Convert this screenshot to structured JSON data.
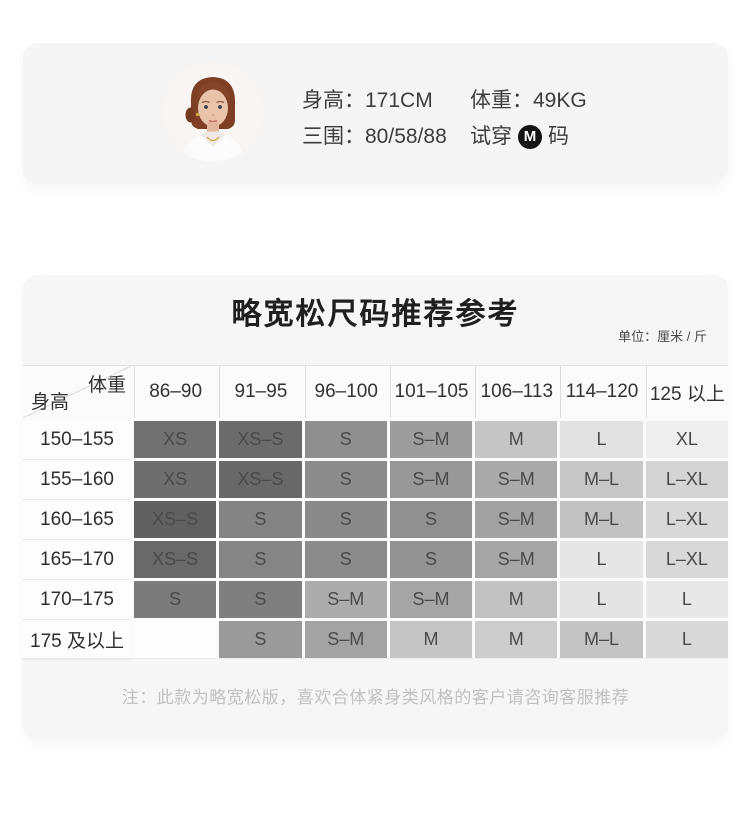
{
  "model_card": {
    "height_label": "身高：",
    "height_value": "171CM",
    "weight_label": "体重：",
    "weight_value": "49KG",
    "measurements_label": "三围：",
    "measurements_value": "80/58/88",
    "fit_label": "试穿",
    "fit_size": "M",
    "fit_suffix": "码",
    "badge_bg": "#141414"
  },
  "size_card": {
    "title": "略宽松尺码推荐参考",
    "unit_note": "单位：厘米 / 斤",
    "corner": {
      "weight": "体重",
      "height": "身高"
    },
    "columns": [
      "86–90",
      "91–95",
      "96–100",
      "101–105",
      "106–113",
      "114–120",
      "125 以上"
    ],
    "rows": [
      {
        "label": "150–155",
        "cells": [
          {
            "text": "XS",
            "bg": "#717171"
          },
          {
            "text": "XS–S",
            "bg": "#6b6b6b"
          },
          {
            "text": "S",
            "bg": "#8f8f8f"
          },
          {
            "text": "S–M",
            "bg": "#9d9d9d"
          },
          {
            "text": "M",
            "bg": "#c5c5c5"
          },
          {
            "text": "L",
            "bg": "#e1e1e1"
          },
          {
            "text": "XL",
            "bg": "#eeeeee"
          }
        ]
      },
      {
        "label": "155–160",
        "cells": [
          {
            "text": "XS",
            "bg": "#6e6e6e"
          },
          {
            "text": "XS–S",
            "bg": "#686868"
          },
          {
            "text": "S",
            "bg": "#8c8c8c"
          },
          {
            "text": "S–M",
            "bg": "#989898"
          },
          {
            "text": "S–M",
            "bg": "#aaaaaa"
          },
          {
            "text": "M–L",
            "bg": "#c7c7c7"
          },
          {
            "text": "L–XL",
            "bg": "#d4d4d4"
          }
        ]
      },
      {
        "label": "160–165",
        "cells": [
          {
            "text": "XS–S",
            "bg": "#616161"
          },
          {
            "text": "S",
            "bg": "#848484"
          },
          {
            "text": "S",
            "bg": "#8a8a8a"
          },
          {
            "text": "S",
            "bg": "#909090"
          },
          {
            "text": "S–M",
            "bg": "#a2a2a2"
          },
          {
            "text": "M–L",
            "bg": "#c2c2c2"
          },
          {
            "text": "L–XL",
            "bg": "#d8d8d8"
          }
        ]
      },
      {
        "label": "165–170",
        "cells": [
          {
            "text": "XS–S",
            "bg": "#696969"
          },
          {
            "text": "S",
            "bg": "#858585"
          },
          {
            "text": "S",
            "bg": "#8b8b8b"
          },
          {
            "text": "S",
            "bg": "#939393"
          },
          {
            "text": "S–M",
            "bg": "#a6a6a6"
          },
          {
            "text": "L",
            "bg": "#e6e6e6"
          },
          {
            "text": "L–XL",
            "bg": "#d8d8d8"
          }
        ]
      },
      {
        "label": "170–175",
        "cells": [
          {
            "text": "S",
            "bg": "#7b7b7b"
          },
          {
            "text": "S",
            "bg": "#7f7f7f"
          },
          {
            "text": "S–M",
            "bg": "#acacac"
          },
          {
            "text": "S–M",
            "bg": "#a5a5a5"
          },
          {
            "text": "M",
            "bg": "#c2c2c2"
          },
          {
            "text": "L",
            "bg": "#e4e4e4"
          },
          {
            "text": "L",
            "bg": "#e8e8e8"
          }
        ]
      },
      {
        "label": "175 及以上",
        "cells": [
          {
            "text": "",
            "bg": "#fdfdfd"
          },
          {
            "text": "S",
            "bg": "#9a9a9a"
          },
          {
            "text": "S–M",
            "bg": "#a3a3a3"
          },
          {
            "text": "M",
            "bg": "#c5c5c5"
          },
          {
            "text": "M",
            "bg": "#cccccc"
          },
          {
            "text": "M–L",
            "bg": "#c4c4c4"
          },
          {
            "text": "L",
            "bg": "#d9d9d9"
          }
        ]
      }
    ],
    "note": "注：此款为略宽松版，喜欢合体紧身类风格的客户请咨询客服推荐"
  }
}
